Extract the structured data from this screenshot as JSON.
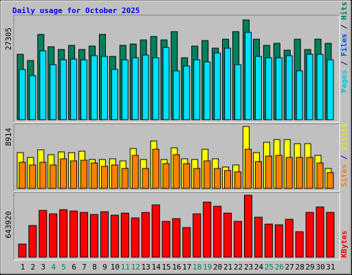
{
  "chart_data": [
    {
      "type": "bar",
      "title": "Daily usage for October 2025",
      "ylim": [
        0,
        27305
      ],
      "yticks": [
        27305
      ],
      "side_label": [
        {
          "text": "Pages",
          "color": "#00c8e8"
        },
        {
          "text": " / ",
          "color": "#000080"
        },
        {
          "text": "Files",
          "color": "#0050ff"
        },
        {
          "text": " / ",
          "color": "#000080"
        },
        {
          "text": "Hits",
          "color": "#00805c"
        }
      ],
      "series": [
        {
          "name": "Hits",
          "color": "#00805c",
          "values": [
            17890,
            16190,
            23350,
            19960,
            19210,
            20340,
            19210,
            20150,
            23350,
            17320,
            20340,
            20710,
            21840,
            22780,
            21840,
            24100,
            16950,
            20150,
            21650,
            19580,
            22030,
            24100,
            27305,
            22030,
            20340,
            20900,
            19020,
            22030,
            19210,
            22030,
            20900
          ]
        },
        {
          "name": "Pages",
          "color": "#00e0ff",
          "values": [
            13750,
            12050,
            18830,
            15060,
            16380,
            16570,
            16380,
            17510,
            17320,
            13750,
            16380,
            16950,
            17700,
            16950,
            19770,
            13370,
            14690,
            16380,
            15820,
            18260,
            19580,
            15060,
            23910,
            17320,
            16950,
            16950,
            17510,
            13370,
            17890,
            17890,
            16380
          ]
        }
      ]
    },
    {
      "type": "bar",
      "ylim": [
        0,
        8914
      ],
      "yticks": [
        8914
      ],
      "side_label": [
        {
          "text": "Sites",
          "color": "#ff8000"
        },
        {
          "text": " / ",
          "color": "#000080"
        },
        {
          "text": "Visits",
          "color": "#e8e800"
        }
      ],
      "series": [
        {
          "name": "Visits",
          "color": "#ffff00",
          "values": [
            5150,
            4460,
            5550,
            4850,
            5250,
            5150,
            5350,
            4160,
            4160,
            4260,
            3960,
            5740,
            4160,
            6830,
            4160,
            5840,
            4260,
            4160,
            5640,
            4260,
            3070,
            3370,
            8914,
            5150,
            6640,
            7030,
            7030,
            6440,
            6440,
            4750,
            2870
          ]
        },
        {
          "name": "Sites",
          "color": "#ff8000",
          "values": [
            3760,
            3370,
            3760,
            3370,
            4260,
            3960,
            4060,
            3660,
            3170,
            3370,
            2870,
            4750,
            2870,
            5640,
            3560,
            4850,
            3560,
            2870,
            3960,
            2870,
            2570,
            2380,
            5640,
            3860,
            4650,
            4750,
            4460,
            4460,
            4460,
            3660,
            2280
          ]
        }
      ]
    },
    {
      "type": "bar",
      "ylim": [
        0,
        643920
      ],
      "yticks": [
        643920
      ],
      "side_label": [
        {
          "text": "KBytes",
          "color": "#ff0000"
        }
      ],
      "categories": [
        "1",
        "2",
        "3",
        "4",
        "5",
        "6",
        "7",
        "8",
        "9",
        "10",
        "11",
        "12",
        "13",
        "14",
        "15",
        "16",
        "17",
        "18",
        "19",
        "20",
        "21",
        "22",
        "23",
        "24",
        "25",
        "26",
        "27",
        "28",
        "29",
        "30",
        "31"
      ],
      "category_colors": [
        "#000000",
        "#000000",
        "#000000",
        "#00805c",
        "#00805c",
        "#000000",
        "#000000",
        "#000000",
        "#000000",
        "#000000",
        "#00805c",
        "#00805c",
        "#000000",
        "#000000",
        "#000000",
        "#000000",
        "#000000",
        "#00805c",
        "#00805c",
        "#000000",
        "#000000",
        "#000000",
        "#000000",
        "#000000",
        "#00805c",
        "#00805c",
        "#000000",
        "#000000",
        "#000000",
        "#000000",
        "#000000"
      ],
      "series": [
        {
          "name": "KBytes",
          "color": "#ff0000",
          "values": [
            135940,
            329130,
            486540,
            450760,
            493690,
            479380,
            465070,
            443610,
            472230,
            436450,
            457920,
            407830,
            465070,
            543780,
            372060,
            400680,
            307660,
            450760,
            572370,
            529460,
            457920,
            372060,
            643920,
            414990,
            343440,
            336280,
            393520,
            264730,
            465070,
            522300,
            465070
          ]
        }
      ]
    }
  ]
}
